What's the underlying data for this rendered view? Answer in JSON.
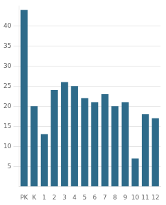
{
  "chart_data": {
    "type": "bar",
    "categories": [
      "PK",
      "K",
      "1",
      "2",
      "3",
      "4",
      "5",
      "6",
      "7",
      "8",
      "9",
      "10",
      "11",
      "12"
    ],
    "values": [
      44,
      20,
      13,
      24,
      26,
      25,
      22,
      21,
      23,
      20,
      21,
      7,
      18,
      17
    ],
    "color": "#2e6b8a",
    "ylim": [
      0,
      45
    ],
    "yticks": [
      5,
      10,
      15,
      20,
      25,
      30,
      35,
      40
    ],
    "grid": true
  }
}
